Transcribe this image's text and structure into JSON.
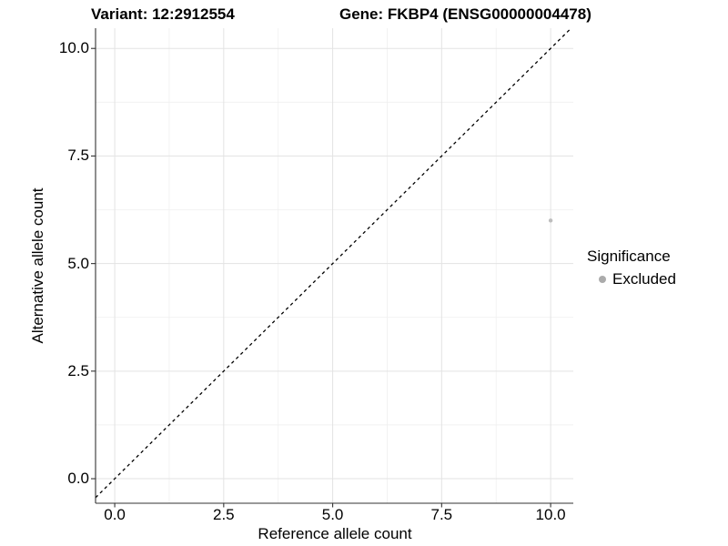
{
  "chart_data": {
    "type": "scatter",
    "titles": {
      "variant": "Variant: 12:2912554",
      "gene": "Gene: FKBP4 (ENSG00000004478)"
    },
    "xlabel": "Reference allele count",
    "ylabel": "Alternative allele count",
    "xlim": [
      -0.44,
      10.52
    ],
    "ylim": [
      -0.57,
      10.47
    ],
    "x_ticks": [
      0,
      2.5,
      5,
      7.5,
      10
    ],
    "x_tick_labels": [
      "0.0",
      "2.5",
      "5.0",
      "7.5",
      "10.0"
    ],
    "y_ticks": [
      0,
      2.5,
      5,
      7.5,
      10
    ],
    "y_tick_labels": [
      "0.0",
      "2.5",
      "5.0",
      "7.5",
      "10.0"
    ],
    "grid": {
      "major": true,
      "minor": true
    },
    "legend": {
      "position": "right",
      "title": "Significance",
      "items": [
        {
          "label": "Excluded",
          "color": "#ababab"
        }
      ]
    },
    "series": [
      {
        "name": "Excluded",
        "color": "#bdbdbd",
        "points": [
          {
            "x": 10,
            "y": 6
          }
        ]
      }
    ],
    "reference_line": {
      "slope": 1,
      "intercept": 0,
      "style": "dashed",
      "color": "#000000"
    }
  },
  "colors": {
    "background": "#ffffff",
    "axis_line": "#333333",
    "tick_mark": "#333333",
    "grid_major": "#e3e3e3",
    "grid_minor": "#efefef",
    "text": "#000000"
  }
}
